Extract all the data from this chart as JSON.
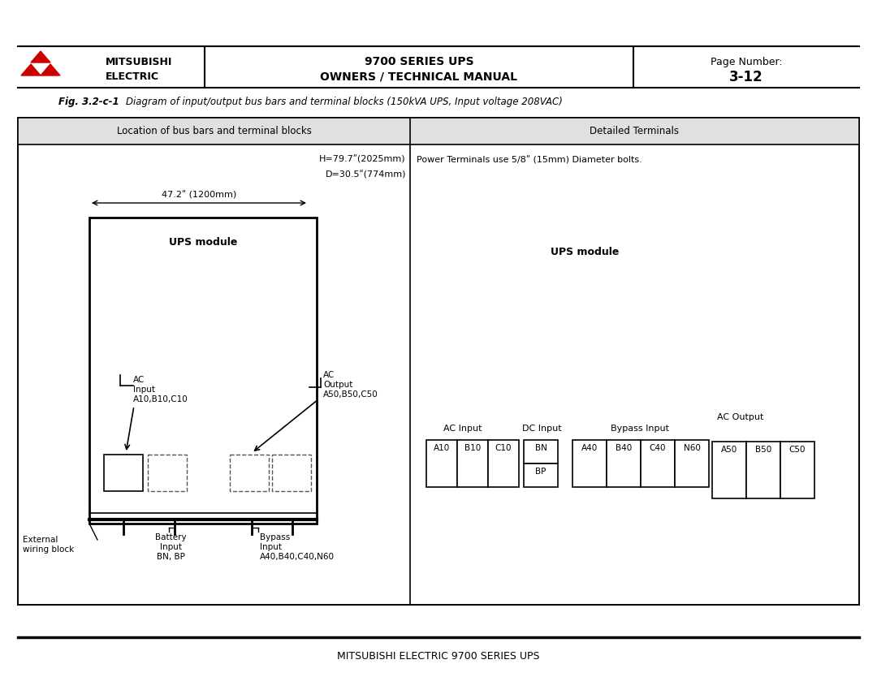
{
  "bg_color": "#ffffff",
  "header": {
    "logo_color": "#cc0000",
    "company_line1": "MITSUBISHI",
    "company_line2": "ELECTRIC",
    "center_line1": "9700 SERIES UPS",
    "center_line2": "OWNERS / TECHNICAL MANUAL",
    "right_line1": "Page Number:",
    "right_line2": "3-12"
  },
  "fig_caption_bold": "Fig. 3.2-c-1",
  "fig_caption_normal": "   Diagram of input/output bus bars and terminal blocks (150kVA UPS, Input voltage 208VAC)",
  "table_header_left": "Location of bus bars and terminal blocks",
  "table_header_right": "Detailed Terminals",
  "h_label": "H=79.7ʺ(2025mm)",
  "d_label": "D=30.5ʺ(774mm)",
  "width_label": "47.2ʺ (1200mm)",
  "ups_module_label": "UPS module",
  "ups_module_label2": "UPS module",
  "power_terminals_text": "Power Terminals use 5/8ʺ (15mm) Diameter bolts.",
  "external_wiring_line1": "External",
  "external_wiring_line2": "wiring block",
  "battery_line1": "Battery",
  "battery_line2": "Input",
  "battery_line3": "BN, BP",
  "bypass_line1": "Bypass",
  "bypass_line2": "Input",
  "bypass_line3": "A40,B40,C40,N60",
  "footer_text": "MITSUBISHI ELECTRIC 9700 SERIES UPS",
  "ac_input_boxes": [
    "A10",
    "B10",
    "C10"
  ],
  "dc_input_boxes": [
    "BN",
    "BP"
  ],
  "bypass_input_boxes": [
    "A40",
    "B40",
    "C40",
    "N60"
  ],
  "ac_output_boxes": [
    "A50",
    "B50",
    "C50"
  ],
  "label_ac_input": "AC Input",
  "label_dc_input": "DC Input",
  "label_bypass_input": "Bypass Input",
  "label_ac_output": "AC Output"
}
